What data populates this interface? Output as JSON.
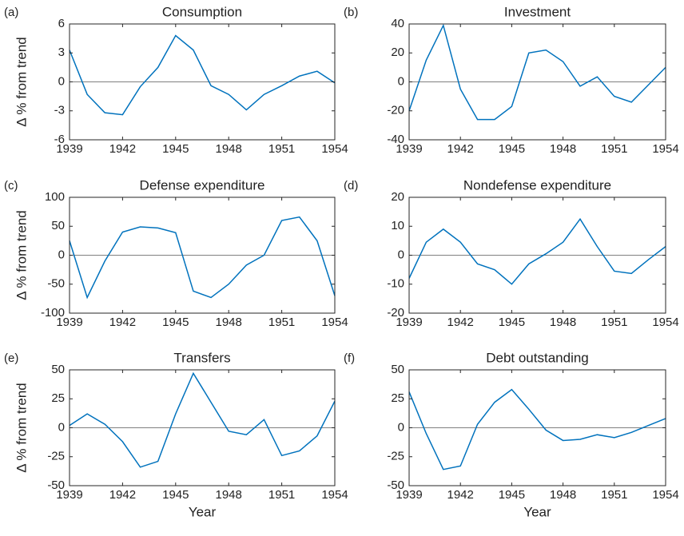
{
  "chart_data": [
    {
      "type": "line",
      "panel_label": "(a)",
      "title": "Consumption",
      "ylabel": "Δ % from trend",
      "x": [
        1939,
        1940,
        1941,
        1942,
        1943,
        1944,
        1945,
        1946,
        1947,
        1948,
        1949,
        1950,
        1951,
        1952,
        1953,
        1954
      ],
      "values": [
        3.3,
        -1.3,
        -3.2,
        -3.4,
        -0.5,
        1.5,
        4.8,
        3.3,
        -0.4,
        -1.3,
        -2.9,
        -1.3,
        -0.4,
        0.6,
        1.1,
        -0.1
      ],
      "color": "#0072bd",
      "xlim": [
        1939,
        1954
      ],
      "xticks": [
        1939,
        1942,
        1945,
        1948,
        1951,
        1954
      ],
      "ylim": [
        -6,
        6
      ],
      "yticks": [
        -6,
        -3,
        0,
        3,
        6
      ],
      "reference_line": 0
    },
    {
      "type": "line",
      "panel_label": "(b)",
      "title": "Investment",
      "x": [
        1939,
        1940,
        1941,
        1942,
        1943,
        1944,
        1945,
        1946,
        1947,
        1948,
        1949,
        1950,
        1951,
        1952,
        1953,
        1954
      ],
      "values": [
        -20,
        15,
        39,
        -5,
        -26,
        -26,
        -17,
        20,
        22,
        14,
        -3,
        3.5,
        -10,
        -14,
        -2,
        10
      ],
      "color": "#0072bd",
      "xlim": [
        1939,
        1954
      ],
      "xticks": [
        1939,
        1942,
        1945,
        1948,
        1951,
        1954
      ],
      "ylim": [
        -40,
        40
      ],
      "yticks": [
        -40,
        -20,
        0,
        20,
        40
      ],
      "reference_line": 0
    },
    {
      "type": "line",
      "panel_label": "(c)",
      "title": "Defense expenditure",
      "ylabel": "Δ % from trend",
      "x": [
        1939,
        1940,
        1941,
        1942,
        1943,
        1944,
        1945,
        1946,
        1947,
        1948,
        1949,
        1950,
        1951,
        1952,
        1953,
        1954
      ],
      "values": [
        25,
        -73,
        -10,
        40,
        49,
        47,
        39,
        -62,
        -73,
        -50,
        -17,
        0,
        60,
        66,
        25,
        -70
      ],
      "color": "#0072bd",
      "xlim": [
        1939,
        1954
      ],
      "xticks": [
        1939,
        1942,
        1945,
        1948,
        1951,
        1954
      ],
      "ylim": [
        -100,
        100
      ],
      "yticks": [
        -100,
        -50,
        0,
        50,
        100
      ],
      "reference_line": 0
    },
    {
      "type": "line",
      "panel_label": "(d)",
      "title": "Nondefense expenditure",
      "x": [
        1939,
        1940,
        1941,
        1942,
        1943,
        1944,
        1945,
        1946,
        1947,
        1948,
        1949,
        1950,
        1951,
        1952,
        1953,
        1954
      ],
      "values": [
        -8,
        4.5,
        9,
        4.5,
        -3,
        -5,
        -10,
        -3,
        0.5,
        4.5,
        12.5,
        3,
        -5.5,
        -6.3,
        -1.5,
        3
      ],
      "color": "#0072bd",
      "xlim": [
        1939,
        1954
      ],
      "xticks": [
        1939,
        1942,
        1945,
        1948,
        1951,
        1954
      ],
      "ylim": [
        -20,
        20
      ],
      "yticks": [
        -20,
        -10,
        0,
        10,
        20
      ],
      "reference_line": 0
    },
    {
      "type": "line",
      "panel_label": "(e)",
      "title": "Transfers",
      "ylabel": "Δ % from trend",
      "xlabel": "Year",
      "x": [
        1939,
        1940,
        1941,
        1942,
        1943,
        1944,
        1945,
        1946,
        1947,
        1948,
        1949,
        1950,
        1951,
        1952,
        1953,
        1954
      ],
      "values": [
        2,
        12,
        3,
        -12,
        -34,
        -29,
        12,
        47,
        22,
        -3,
        -6,
        7,
        -24,
        -20,
        -7,
        23
      ],
      "color": "#0072bd",
      "xlim": [
        1939,
        1954
      ],
      "xticks": [
        1939,
        1942,
        1945,
        1948,
        1951,
        1954
      ],
      "ylim": [
        -50,
        50
      ],
      "yticks": [
        -50,
        -25,
        0,
        25,
        50
      ],
      "reference_line": 0
    },
    {
      "type": "line",
      "panel_label": "(f)",
      "title": "Debt outstanding",
      "xlabel": "Year",
      "x": [
        1939,
        1940,
        1941,
        1942,
        1943,
        1944,
        1945,
        1946,
        1947,
        1948,
        1949,
        1950,
        1951,
        1952,
        1953,
        1954
      ],
      "values": [
        31,
        -5,
        -36,
        -33,
        3,
        22,
        33,
        16,
        -2,
        -11,
        -10,
        -6,
        -8.5,
        -4,
        2,
        8
      ],
      "color": "#0072bd",
      "xlim": [
        1939,
        1954
      ],
      "xticks": [
        1939,
        1942,
        1945,
        1948,
        1951,
        1954
      ],
      "ylim": [
        -50,
        50
      ],
      "yticks": [
        -50,
        -25,
        0,
        25,
        50
      ],
      "reference_line": 0
    }
  ]
}
